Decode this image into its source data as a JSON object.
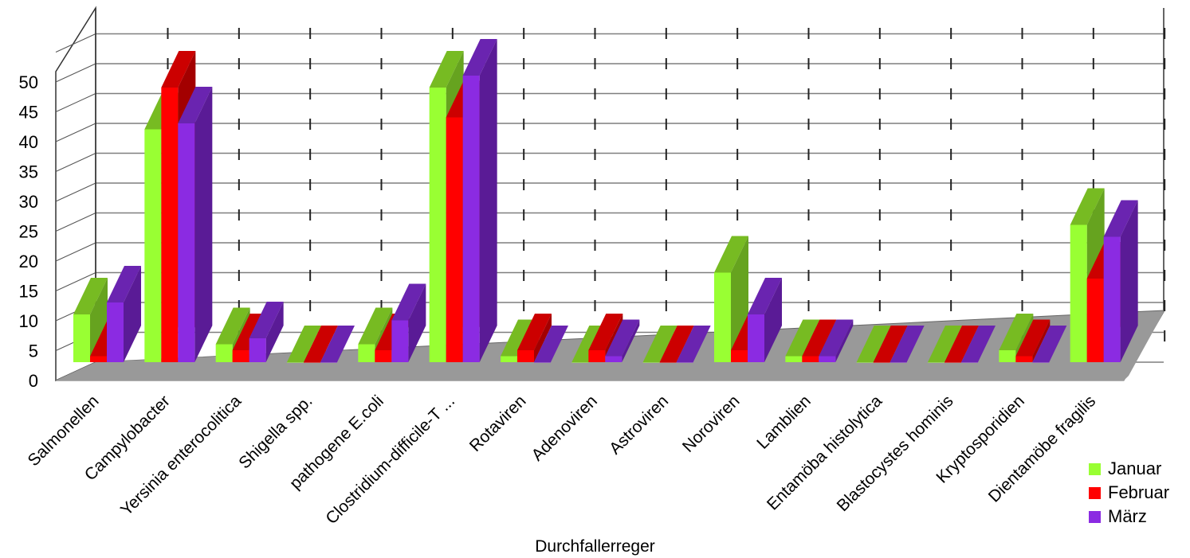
{
  "chart_data": {
    "type": "bar",
    "style": "3d-clustered",
    "xlabel": "Durchfallerreger",
    "ylabel": "",
    "ylim": [
      0,
      50
    ],
    "yticks": [
      0,
      5,
      10,
      15,
      20,
      25,
      30,
      35,
      40,
      45,
      50
    ],
    "grid": true,
    "legend_position": "bottom-right",
    "categories": [
      "Salmonellen",
      "Campylobacter",
      "Yersinia enterocolitica",
      "Shigella spp.",
      "pathogene E.coli",
      "Clostridium-difficile-T ...",
      "Rotaviren",
      "Adenoviren",
      "Astroviren",
      "Noroviren",
      "Lamblien",
      "Entamöba histolytica",
      "Blastocystes hominis",
      "Kryptosporidien",
      "Dientamöbe fragilis"
    ],
    "series": [
      {
        "name": "Januar",
        "color": "#99ff33",
        "side": "#66a31f",
        "top": "#77bb22",
        "values": [
          8,
          39,
          3,
          0,
          3,
          46,
          1,
          0,
          0,
          15,
          1,
          0,
          0,
          2,
          23
        ]
      },
      {
        "name": "Februar",
        "color": "#ff0000",
        "side": "#a30000",
        "top": "#cc0000",
        "values": [
          1,
          46,
          2,
          0,
          2,
          41,
          2,
          2,
          0,
          2,
          1,
          0,
          0,
          1,
          14
        ]
      },
      {
        "name": "März",
        "color": "#8b2be2",
        "side": "#5a1b96",
        "top": "#6a24b0",
        "values": [
          10,
          40,
          4,
          0,
          7,
          48,
          0,
          1,
          0,
          8,
          1,
          0,
          0,
          0,
          21
        ]
      }
    ]
  }
}
